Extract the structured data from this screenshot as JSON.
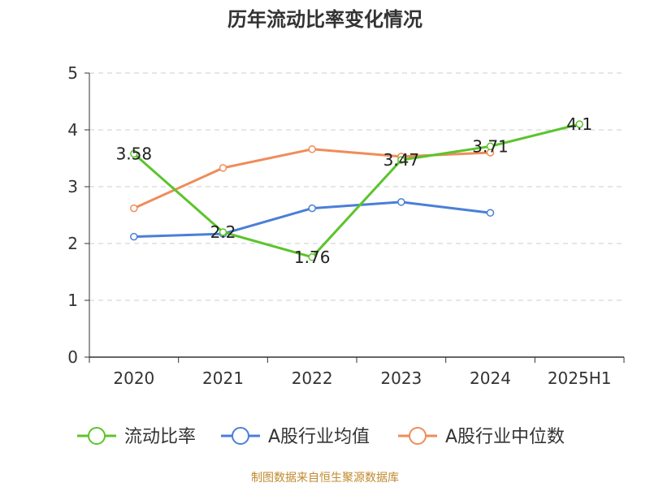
{
  "chart_data": {
    "type": "line",
    "title": "历年流动比率变化情况",
    "categories": [
      "2020",
      "2021",
      "2022",
      "2023",
      "2024",
      "2025H1"
    ],
    "ylim": [
      0,
      5
    ],
    "yticks": [
      "0",
      "1",
      "2",
      "3",
      "4",
      "5"
    ],
    "grid": true,
    "legend_position": "bottom",
    "series": [
      {
        "name": "流动比率",
        "color": "#5cc42c",
        "values": [
          3.58,
          2.2,
          1.76,
          3.47,
          3.71,
          4.1
        ],
        "labels": [
          "3.58",
          "2.2",
          "1.76",
          "3.47",
          "3.71",
          "4.1"
        ]
      },
      {
        "name": "A股行业均值",
        "color": "#4a7fd8",
        "values": [
          2.12,
          2.17,
          2.62,
          2.73,
          2.54,
          null
        ]
      },
      {
        "name": "A股行业中位数",
        "color": "#f08c5a",
        "values": [
          2.62,
          3.33,
          3.66,
          3.53,
          3.6,
          null
        ]
      }
    ]
  },
  "source": "制图数据来自恒生聚源数据库"
}
